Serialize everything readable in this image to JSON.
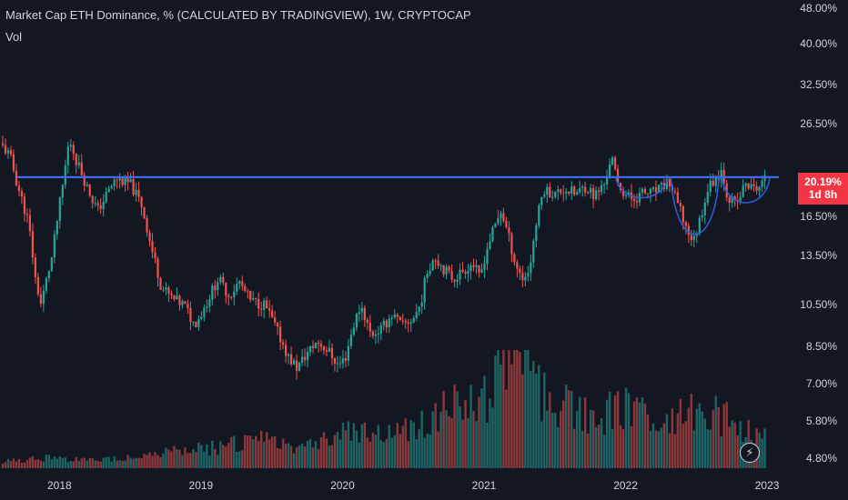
{
  "header": {
    "title": "Market Cap ETH Dominance, % (CALCULATED BY TRADINGVIEW), 1W, CRYPTOCAP",
    "volume_label": "Vol"
  },
  "price_badge": {
    "value": "20.19%",
    "countdown": "1d 8h"
  },
  "icons": {
    "replay": "lightning-bolt-icon"
  },
  "colors": {
    "up": "#26a69a",
    "down": "#ef5350",
    "resistance": "#3a6bf0",
    "pattern": "#2f5fdc",
    "badge": "#f23645"
  },
  "chart_data": {
    "type": "candlestick",
    "title": "Market Cap ETH Dominance, % (CALCULATED BY TRADINGVIEW), 1W, CRYPTOCAP",
    "interval": "1W",
    "yscale": "log",
    "ylim": [
      4.55,
      50
    ],
    "ytick_labels": [
      "48.00%",
      "40.00%",
      "32.50%",
      "26.50%",
      "16.50%",
      "13.50%",
      "10.50%",
      "8.50%",
      "7.00%",
      "5.80%",
      "4.80%"
    ],
    "yticks": [
      48,
      40,
      32.5,
      26.5,
      16.5,
      13.5,
      10.5,
      8.5,
      7.0,
      5.8,
      4.8
    ],
    "xlim": [
      2017.58,
      2023.16
    ],
    "xtick_labels": [
      "2018",
      "2019",
      "2020",
      "2021",
      "2022",
      "2023"
    ],
    "xticks": [
      2018,
      2019,
      2020,
      2021,
      2022,
      2023
    ],
    "last_value": 20.19,
    "resistance_level": 20.19,
    "price_anchors": [
      [
        2017.58,
        24.0
      ],
      [
        2017.65,
        22.5
      ],
      [
        2017.7,
        19.5
      ],
      [
        2017.78,
        16.0
      ],
      [
        2017.83,
        12.0
      ],
      [
        2017.87,
        10.5
      ],
      [
        2017.95,
        13.5
      ],
      [
        2018.02,
        19.0
      ],
      [
        2018.07,
        24.5
      ],
      [
        2018.12,
        22.0
      ],
      [
        2018.2,
        19.0
      ],
      [
        2018.27,
        17.0
      ],
      [
        2018.4,
        20.0
      ],
      [
        2018.5,
        19.5
      ],
      [
        2018.58,
        17.5
      ],
      [
        2018.65,
        14.0
      ],
      [
        2018.72,
        11.5
      ],
      [
        2018.8,
        10.8
      ],
      [
        2018.88,
        10.5
      ],
      [
        2018.95,
        9.5
      ],
      [
        2019.0,
        10.0
      ],
      [
        2019.05,
        10.8
      ],
      [
        2019.12,
        12.0
      ],
      [
        2019.2,
        11.0
      ],
      [
        2019.27,
        11.8
      ],
      [
        2019.35,
        10.7
      ],
      [
        2019.45,
        10.5
      ],
      [
        2019.55,
        9.0
      ],
      [
        2019.62,
        8.0
      ],
      [
        2019.68,
        7.6
      ],
      [
        2019.75,
        8.2
      ],
      [
        2019.82,
        8.7
      ],
      [
        2019.9,
        8.3
      ],
      [
        2019.97,
        7.7
      ],
      [
        2020.02,
        8.0
      ],
      [
        2020.08,
        9.5
      ],
      [
        2020.13,
        10.5
      ],
      [
        2020.2,
        9.0
      ],
      [
        2020.28,
        9.3
      ],
      [
        2020.35,
        10.0
      ],
      [
        2020.42,
        9.4
      ],
      [
        2020.5,
        9.8
      ],
      [
        2020.55,
        10.5
      ],
      [
        2020.6,
        12.5
      ],
      [
        2020.65,
        13.5
      ],
      [
        2020.7,
        12.8
      ],
      [
        2020.78,
        12.0
      ],
      [
        2020.85,
        12.5
      ],
      [
        2020.92,
        13.0
      ],
      [
        2020.97,
        12.0
      ],
      [
        2021.02,
        14.0
      ],
      [
        2021.07,
        15.5
      ],
      [
        2021.12,
        17.0
      ],
      [
        2021.17,
        15.0
      ],
      [
        2021.22,
        13.0
      ],
      [
        2021.27,
        12.0
      ],
      [
        2021.32,
        12.5
      ],
      [
        2021.37,
        16.0
      ],
      [
        2021.42,
        19.0
      ],
      [
        2021.5,
        18.5
      ],
      [
        2021.57,
        19.0
      ],
      [
        2021.65,
        18.5
      ],
      [
        2021.72,
        19.3
      ],
      [
        2021.78,
        18.3
      ],
      [
        2021.85,
        19.5
      ],
      [
        2021.9,
        22.5
      ],
      [
        2021.94,
        19.5
      ],
      [
        2022.0,
        18.5
      ],
      [
        2022.05,
        18.0
      ],
      [
        2022.12,
        18.6
      ],
      [
        2022.18,
        18.6
      ],
      [
        2022.25,
        19.0
      ],
      [
        2022.3,
        19.8
      ],
      [
        2022.37,
        17.5
      ],
      [
        2022.43,
        15.5
      ],
      [
        2022.48,
        14.5
      ],
      [
        2022.53,
        16.5
      ],
      [
        2022.58,
        19.0
      ],
      [
        2022.63,
        20.0
      ],
      [
        2022.68,
        21.0
      ],
      [
        2022.72,
        18.3
      ],
      [
        2022.78,
        17.5
      ],
      [
        2022.85,
        19.5
      ],
      [
        2022.9,
        19.0
      ],
      [
        2022.95,
        19.3
      ],
      [
        2023.0,
        20.19
      ]
    ],
    "volume_anchors": [
      [
        2017.58,
        0.6
      ],
      [
        2017.9,
        1.0
      ],
      [
        2018.2,
        0.7
      ],
      [
        2018.6,
        1.2
      ],
      [
        2018.9,
        1.6
      ],
      [
        2019.2,
        2.2
      ],
      [
        2019.4,
        2.6
      ],
      [
        2019.7,
        2.2
      ],
      [
        2019.9,
        2.8
      ],
      [
        2020.1,
        3.8
      ],
      [
        2020.3,
        3.0
      ],
      [
        2020.5,
        3.8
      ],
      [
        2020.7,
        5.2
      ],
      [
        2020.9,
        6.0
      ],
      [
        2021.0,
        6.5
      ],
      [
        2021.1,
        8.5
      ],
      [
        2021.2,
        10.0
      ],
      [
        2021.3,
        10.8
      ],
      [
        2021.4,
        7.0
      ],
      [
        2021.6,
        5.5
      ],
      [
        2021.8,
        5.0
      ],
      [
        2022.0,
        5.5
      ],
      [
        2022.2,
        4.5
      ],
      [
        2022.4,
        4.8
      ],
      [
        2022.55,
        5.5
      ],
      [
        2022.7,
        4.5
      ],
      [
        2022.9,
        3.5
      ],
      [
        2023.0,
        2.5
      ]
    ]
  }
}
